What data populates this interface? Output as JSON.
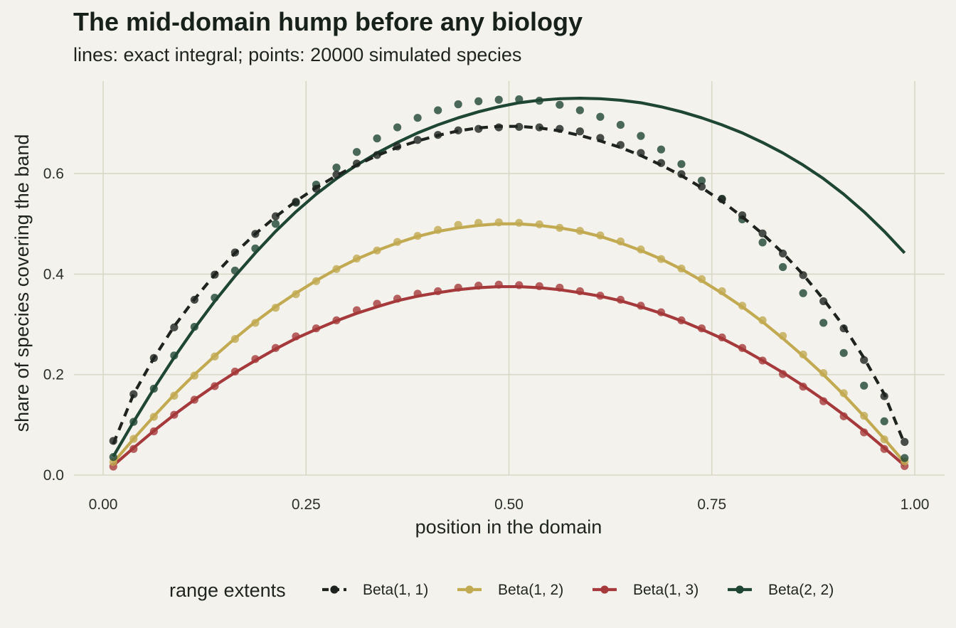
{
  "chart_data": {
    "type": "line",
    "title": "The mid-domain hump before any biology",
    "subtitle": "lines: exact integral; points: 20000 simulated species",
    "xlabel": "position in the domain",
    "ylabel": "share of species covering the band",
    "xlim": [
      0,
      1
    ],
    "ylim": [
      0,
      0.75
    ],
    "xticks": [
      0.0,
      0.25,
      0.5,
      0.75,
      1.0
    ],
    "xtick_labels": [
      "0.00",
      "0.25",
      "0.50",
      "0.75",
      "1.00"
    ],
    "yticks": [
      0.0,
      0.2,
      0.4,
      0.6
    ],
    "ytick_labels": [
      "0.0",
      "0.2",
      "0.4",
      "0.6"
    ],
    "grid": true,
    "legend": {
      "title": "range extents",
      "position": "bottom"
    },
    "x": [
      0.0125,
      0.0375,
      0.0625,
      0.0875,
      0.1125,
      0.1375,
      0.1625,
      0.1875,
      0.2125,
      0.2375,
      0.2625,
      0.2875,
      0.3125,
      0.3375,
      0.3625,
      0.3875,
      0.4125,
      0.4375,
      0.4625,
      0.4875,
      0.5125,
      0.5375,
      0.5625,
      0.5875,
      0.6125,
      0.6375,
      0.6625,
      0.6875,
      0.7125,
      0.7375,
      0.7625,
      0.7875,
      0.8125,
      0.8375,
      0.8625,
      0.8875,
      0.9125,
      0.9375,
      0.9625,
      0.9875
    ],
    "series": [
      {
        "name": "Beta(1, 1)",
        "color": "#1e2320",
        "dashed": true,
        "line": [
          0.062,
          0.161,
          0.233,
          0.296,
          0.35,
          0.399,
          0.442,
          0.48,
          0.514,
          0.545,
          0.572,
          0.596,
          0.617,
          0.636,
          0.652,
          0.665,
          0.676,
          0.685,
          0.691,
          0.694,
          0.694,
          0.691,
          0.685,
          0.676,
          0.665,
          0.652,
          0.636,
          0.617,
          0.596,
          0.572,
          0.545,
          0.514,
          0.48,
          0.442,
          0.399,
          0.35,
          0.296,
          0.233,
          0.161,
          0.062
        ],
        "points": [
          0.068,
          0.161,
          0.233,
          0.294,
          0.349,
          0.399,
          0.443,
          0.48,
          0.515,
          0.544,
          0.57,
          0.598,
          0.62,
          0.637,
          0.654,
          0.667,
          0.677,
          0.686,
          0.689,
          0.692,
          0.693,
          0.692,
          0.689,
          0.684,
          0.671,
          0.657,
          0.641,
          0.621,
          0.599,
          0.574,
          0.549,
          0.517,
          0.481,
          0.441,
          0.398,
          0.346,
          0.292,
          0.229,
          0.157,
          0.066
        ]
      },
      {
        "name": "Beta(1, 2)",
        "color": "#c2aa52",
        "dashed": false,
        "line": [
          0.025,
          0.072,
          0.117,
          0.16,
          0.2,
          0.237,
          0.272,
          0.305,
          0.335,
          0.362,
          0.387,
          0.41,
          0.43,
          0.447,
          0.462,
          0.475,
          0.485,
          0.492,
          0.497,
          0.5,
          0.5,
          0.497,
          0.492,
          0.485,
          0.475,
          0.462,
          0.447,
          0.43,
          0.41,
          0.387,
          0.362,
          0.335,
          0.305,
          0.272,
          0.237,
          0.2,
          0.16,
          0.117,
          0.072,
          0.025
        ],
        "points": [
          0.026,
          0.072,
          0.116,
          0.158,
          0.198,
          0.236,
          0.271,
          0.303,
          0.333,
          0.36,
          0.386,
          0.41,
          0.431,
          0.447,
          0.464,
          0.476,
          0.488,
          0.498,
          0.502,
          0.503,
          0.502,
          0.499,
          0.492,
          0.486,
          0.477,
          0.465,
          0.449,
          0.43,
          0.411,
          0.39,
          0.366,
          0.337,
          0.308,
          0.277,
          0.24,
          0.203,
          0.163,
          0.118,
          0.071,
          0.027
        ]
      },
      {
        "name": "Beta(1, 3)",
        "color": "#a5393b",
        "dashed": false,
        "line": [
          0.019,
          0.054,
          0.088,
          0.12,
          0.15,
          0.178,
          0.204,
          0.228,
          0.251,
          0.272,
          0.29,
          0.307,
          0.322,
          0.335,
          0.347,
          0.356,
          0.363,
          0.369,
          0.373,
          0.375,
          0.375,
          0.373,
          0.369,
          0.363,
          0.356,
          0.347,
          0.335,
          0.322,
          0.307,
          0.29,
          0.272,
          0.251,
          0.228,
          0.204,
          0.178,
          0.15,
          0.12,
          0.088,
          0.054,
          0.019
        ],
        "points": [
          0.017,
          0.052,
          0.087,
          0.12,
          0.15,
          0.177,
          0.206,
          0.231,
          0.253,
          0.276,
          0.292,
          0.308,
          0.328,
          0.341,
          0.351,
          0.361,
          0.366,
          0.373,
          0.377,
          0.379,
          0.378,
          0.376,
          0.373,
          0.366,
          0.357,
          0.349,
          0.337,
          0.324,
          0.308,
          0.292,
          0.274,
          0.253,
          0.228,
          0.201,
          0.176,
          0.147,
          0.117,
          0.085,
          0.052,
          0.018
        ]
      },
      {
        "name": "Beta(2, 2)",
        "color": "#1f4535",
        "dashed": false,
        "line": [
          0.037,
          0.106,
          0.172,
          0.234,
          0.292,
          0.346,
          0.396,
          0.442,
          0.485,
          0.524,
          0.559,
          0.59,
          0.617,
          0.641,
          0.662,
          0.681,
          0.697,
          0.711,
          0.723,
          0.733,
          0.741,
          0.746,
          0.749,
          0.75,
          0.749,
          0.746,
          0.741,
          0.733,
          0.723,
          0.711,
          0.697,
          0.681,
          0.662,
          0.641,
          0.617,
          0.59,
          0.559,
          0.524,
          0.485,
          0.442
        ],
        "points": [
          0.036,
          0.106,
          0.172,
          0.238,
          0.295,
          0.353,
          0.407,
          0.451,
          0.5,
          0.542,
          0.578,
          0.612,
          0.643,
          0.67,
          0.692,
          0.711,
          0.726,
          0.738,
          0.744,
          0.747,
          0.748,
          0.745,
          0.737,
          0.726,
          0.713,
          0.697,
          0.675,
          0.648,
          0.619,
          0.586,
          0.55,
          0.509,
          0.463,
          0.414,
          0.362,
          0.303,
          0.243,
          0.178,
          0.107,
          0.034
        ]
      }
    ]
  }
}
